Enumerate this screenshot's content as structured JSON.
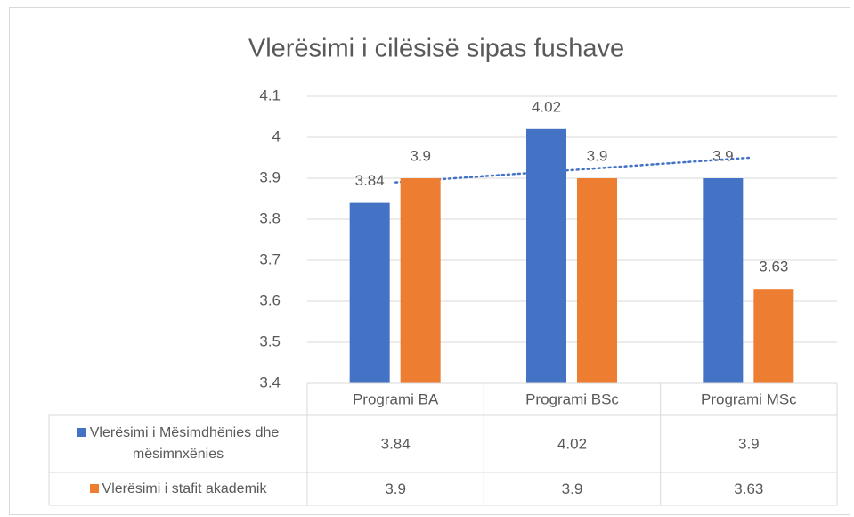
{
  "chart_data": {
    "type": "bar",
    "title": "Vlerësimi i cilësisë sipas fushave",
    "categories": [
      "Programi BA",
      "Programi BSc",
      "Programi MSc"
    ],
    "series": [
      {
        "name": "Vlerësimi i Mësimdhënies dhe mësimnxënies",
        "color": "#4472c4",
        "values": [
          3.84,
          4.02,
          3.9
        ],
        "trendline": "linear"
      },
      {
        "name": "Vlerësimi i stafit akademik",
        "color": "#ed7d31",
        "values": [
          3.9,
          3.9,
          3.63
        ]
      }
    ],
    "ylim": [
      3.4,
      4.1
    ],
    "yticks": [
      3.4,
      3.5,
      3.6,
      3.7,
      3.8,
      3.9,
      4,
      4.1
    ],
    "grid": true,
    "data_labels": true,
    "data_table": true
  }
}
